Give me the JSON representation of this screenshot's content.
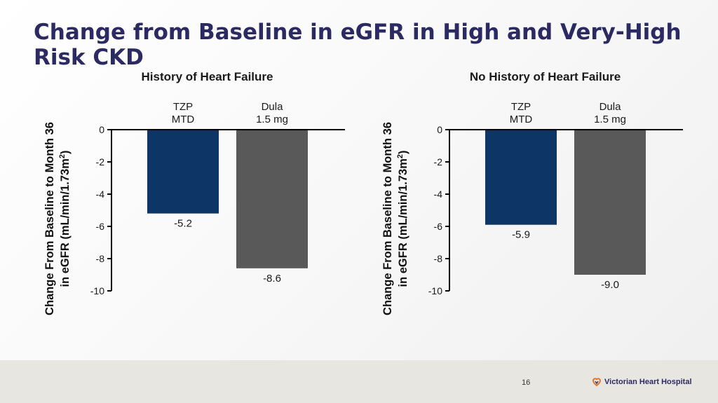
{
  "title": "Change from Baseline in eGFR in High and Very-High Risk CKD",
  "footer": {
    "page_number": "16",
    "logo_text": "Victorian Heart Hospital"
  },
  "colors": {
    "title": "#2b2a63",
    "tzp": "#0d3566",
    "dula": "#595959",
    "footer_bg": "#e8e6e1"
  },
  "chart_data": [
    {
      "type": "bar",
      "title": "History of Heart Failure",
      "ylabel_line1": "Change From Baseline to Month 36",
      "ylabel_line2": "in eGFR (mL/min/1.73m",
      "ylabel_sup": "2",
      "ylabel_close": ")",
      "categories": [
        {
          "line1": "TZP",
          "line2": "MTD"
        },
        {
          "line1": "Dula",
          "line2": "1.5 mg"
        }
      ],
      "values": [
        -5.2,
        -8.6
      ],
      "value_labels": [
        "-5.2",
        "-8.6"
      ],
      "bar_colors": [
        "#0d3566",
        "#595959"
      ],
      "ylim": [
        -10,
        0
      ],
      "yticks": [
        0,
        -2,
        -4,
        -6,
        -8,
        -10
      ],
      "grid": false
    },
    {
      "type": "bar",
      "title": "No History of Heart Failure",
      "ylabel_line1": "Change From Baseline to Month 36",
      "ylabel_line2": "in eGFR (mL/min/1.73m",
      "ylabel_sup": "2",
      "ylabel_close": ")",
      "categories": [
        {
          "line1": "TZP",
          "line2": "MTD"
        },
        {
          "line1": "Dula",
          "line2": "1.5 mg"
        }
      ],
      "values": [
        -5.9,
        -9.0
      ],
      "value_labels": [
        "-5.9",
        "-9.0"
      ],
      "bar_colors": [
        "#0d3566",
        "#595959"
      ],
      "ylim": [
        -10,
        0
      ],
      "yticks": [
        0,
        -2,
        -4,
        -6,
        -8,
        -10
      ],
      "grid": false
    }
  ]
}
